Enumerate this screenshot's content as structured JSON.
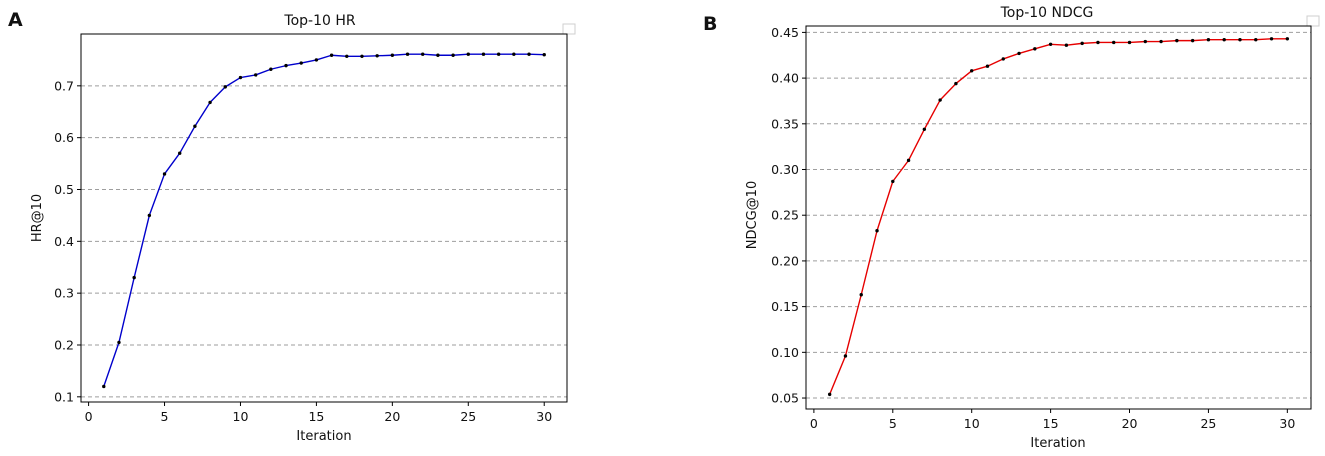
{
  "chart_data": [
    {
      "panel": "A",
      "type": "line",
      "title": "Top-10 HR",
      "xlabel": "Iteration",
      "ylabel": "HR@10",
      "xlim": [
        -0.5,
        31.5
      ],
      "ylim": [
        0.09,
        0.8
      ],
      "xticks": [
        0,
        5,
        10,
        15,
        20,
        25,
        30
      ],
      "yticks": [
        0.1,
        0.2,
        0.3,
        0.4,
        0.5,
        0.6,
        0.7
      ],
      "ytick_labels": [
        "0.1",
        "0.2",
        "0.3",
        "0.4",
        "0.5",
        "0.6",
        "0.7"
      ],
      "grid": "horizontal dashed",
      "line_color": "#0000cc",
      "marker_color": "#000000",
      "series": [
        {
          "x": [
            1,
            2,
            3,
            4,
            5,
            6,
            7,
            8,
            9,
            10,
            11,
            12,
            13,
            14,
            15,
            16,
            17,
            18,
            19,
            20,
            21,
            22,
            23,
            24,
            25,
            26,
            27,
            28,
            29,
            30
          ],
          "values": [
            0.12,
            0.205,
            0.33,
            0.45,
            0.53,
            0.57,
            0.622,
            0.668,
            0.698,
            0.716,
            0.721,
            0.732,
            0.739,
            0.744,
            0.75,
            0.759,
            0.757,
            0.757,
            0.758,
            0.759,
            0.761,
            0.761,
            0.759,
            0.759,
            0.761,
            0.761,
            0.761,
            0.761,
            0.761,
            0.76
          ]
        }
      ]
    },
    {
      "panel": "B",
      "type": "line",
      "title": "Top-10 NDCG",
      "xlabel": "Iteration",
      "ylabel": "NDCG@10",
      "xlim": [
        -0.5,
        31.5
      ],
      "ylim": [
        0.038,
        0.457
      ],
      "xticks": [
        0,
        5,
        10,
        15,
        20,
        25,
        30
      ],
      "yticks": [
        0.05,
        0.1,
        0.15,
        0.2,
        0.25,
        0.3,
        0.35,
        0.4,
        0.45
      ],
      "ytick_labels": [
        "0.05",
        "0.10",
        "0.15",
        "0.20",
        "0.25",
        "0.30",
        "0.35",
        "0.40",
        "0.45"
      ],
      "grid": "horizontal dashed",
      "line_color": "#e60000",
      "marker_color": "#000000",
      "series": [
        {
          "x": [
            1,
            2,
            3,
            4,
            5,
            6,
            7,
            8,
            9,
            10,
            11,
            12,
            13,
            14,
            15,
            16,
            17,
            18,
            19,
            20,
            21,
            22,
            23,
            24,
            25,
            26,
            27,
            28,
            29,
            30
          ],
          "values": [
            0.054,
            0.096,
            0.163,
            0.233,
            0.287,
            0.31,
            0.344,
            0.376,
            0.394,
            0.408,
            0.413,
            0.421,
            0.427,
            0.432,
            0.437,
            0.436,
            0.438,
            0.439,
            0.439,
            0.439,
            0.44,
            0.44,
            0.441,
            0.441,
            0.442,
            0.442,
            0.442,
            0.442,
            0.443,
            0.443
          ]
        }
      ]
    }
  ]
}
